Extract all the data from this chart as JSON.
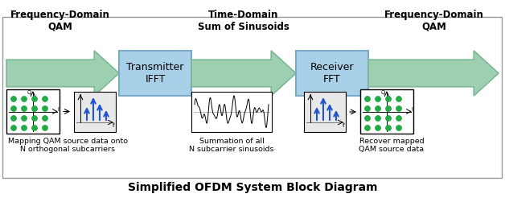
{
  "title": "Simplified OFDM System Block Diagram",
  "title_fontsize": 10,
  "bg_color": "#ffffff",
  "border_color": "#999999",
  "arrow_color": "#9ecfb0",
  "arrow_edge_color": "#7ab896",
  "box_color": "#a8d0e8",
  "box_edge_color": "#7aaac8",
  "box1_label": "Transmitter\nIFFT",
  "box2_label": "Receiver\nFFT",
  "top_label1": "Frequency-Domain\nQAM",
  "top_label2": "Time-Domain\nSum of Sinusoids",
  "top_label3": "Frequency-Domain\nQAM",
  "bottom_label1": "Mapping QAM source data onto\nN orthogonal subcarriers",
  "bottom_label2": "Summation of all\nN subcarrier sinusoids",
  "bottom_label3": "Recover mapped\nQAM source data",
  "dot_color": "#22aa44",
  "blue_color": "#2255cc",
  "spec_bg": "#e8e8e8"
}
